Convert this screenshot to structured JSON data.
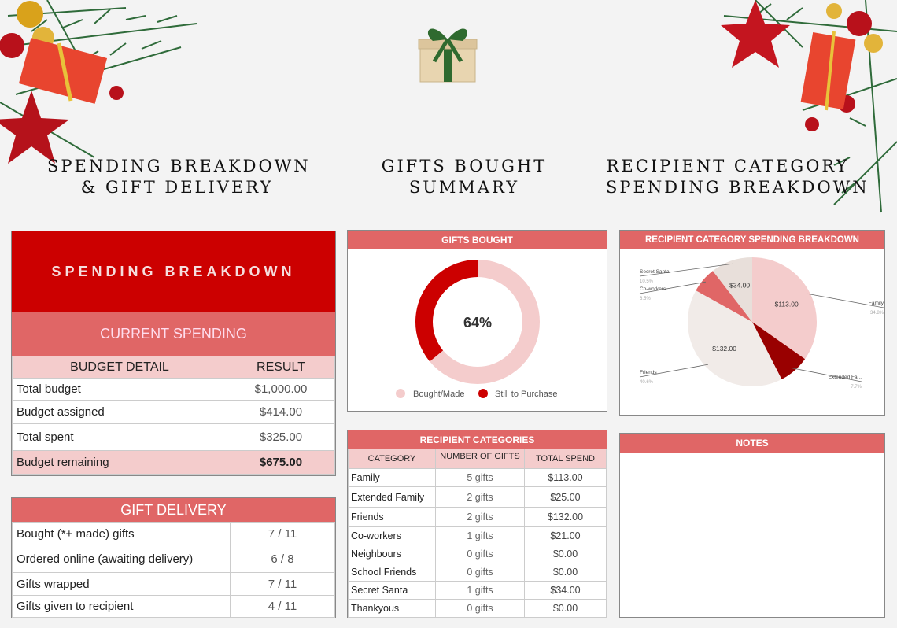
{
  "headings": {
    "spending": [
      "SPENDING BREAKDOWN",
      "& GIFT DELIVERY"
    ],
    "gifts": [
      "GIFTS BOUGHT",
      "SUMMARY"
    ],
    "recipient": [
      "RECIPIENT CATEGORY",
      "SPENDING BREAKDOWN"
    ]
  },
  "spending_panel": {
    "title": "SPENDING BREAKDOWN",
    "current": "CURRENT SPENDING",
    "col_detail": "BUDGET DETAIL",
    "col_result": "RESULT",
    "rows": [
      {
        "label": "Total budget",
        "value": "$1,000.00"
      },
      {
        "label": "Budget assigned",
        "value": "$414.00"
      },
      {
        "label": "Total spent",
        "value": "$325.00"
      },
      {
        "label": "Budget remaining",
        "value": "$675.00"
      }
    ]
  },
  "delivery_panel": {
    "title": "GIFT DELIVERY",
    "rows": [
      {
        "label": "Bought (*+ made) gifts",
        "value": "7 / 11"
      },
      {
        "label": "Ordered online (awaiting delivery)",
        "value": "6 / 8"
      },
      {
        "label": "Gifts wrapped",
        "value": "7 / 11"
      },
      {
        "label": "Gifts given to recipient",
        "value": "4 / 11"
      }
    ]
  },
  "gifts_bought": {
    "title": "GIFTS BOUGHT",
    "percent_label": "64%",
    "percent": 64,
    "legend": [
      "Bought/Made",
      "Still to Purchase"
    ],
    "colors": {
      "bought": "#f4cccc",
      "remaining": "#cc0000"
    }
  },
  "categories_table": {
    "title": "RECIPIENT CATEGORIES",
    "headers": [
      "CATEGORY",
      "NUMBER OF GIFTS",
      "TOTAL SPEND"
    ],
    "rows": [
      {
        "category": "Family",
        "gifts": "5 gifts",
        "spend": "$113.00"
      },
      {
        "category": "Extended Family",
        "gifts": "2 gifts",
        "spend": "$25.00"
      },
      {
        "category": "Friends",
        "gifts": "2 gifts",
        "spend": "$132.00"
      },
      {
        "category": "Co-workers",
        "gifts": "1 gifts",
        "spend": "$21.00"
      },
      {
        "category": "Neighbours",
        "gifts": "0 gifts",
        "spend": "$0.00"
      },
      {
        "category": "School Friends",
        "gifts": "0 gifts",
        "spend": "$0.00"
      },
      {
        "category": "Secret Santa",
        "gifts": "1 gifts",
        "spend": "$34.00"
      },
      {
        "category": "Thankyous",
        "gifts": "0 gifts",
        "spend": "$0.00"
      }
    ]
  },
  "pie_panel": {
    "title": "RECIPIENT CATEGORY SPENDING BREAKDOWN",
    "slices": [
      {
        "name": "Family",
        "value": 113,
        "label": "$113.00",
        "pct": "34.8%",
        "color": "#f4cccc"
      },
      {
        "name": "Extended Fa...",
        "value": 25,
        "label": "",
        "pct": "7.7%",
        "color": "#990000"
      },
      {
        "name": "Friends",
        "value": 132,
        "label": "$132.00",
        "pct": "40.6%",
        "color": "#f1ebe8"
      },
      {
        "name": "Co-workers",
        "value": 21,
        "label": "",
        "pct": "6.5%",
        "color": "#e06666"
      },
      {
        "name": "Secret Santa",
        "value": 34,
        "label": "$34.00",
        "pct": "10.5%",
        "color": "#e8dfda"
      }
    ]
  },
  "notes_panel": {
    "title": "NOTES"
  }
}
